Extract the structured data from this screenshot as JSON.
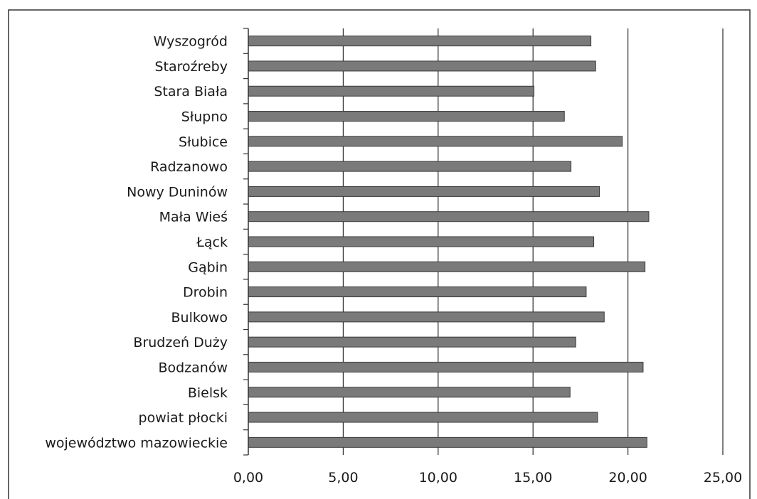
{
  "chart_data": {
    "type": "bar",
    "orientation": "horizontal",
    "categories": [
      "Wyszogród",
      "Staroźreby",
      "Stara Biała",
      "Słupno",
      "Słubice",
      "Radzanowo",
      "Nowy Duninów",
      "Mała Wieś",
      "Łąck",
      "Gąbin",
      "Drobin",
      "Bulkowo",
      "Brudzeń Duży",
      "Bodzanów",
      "Bielsk",
      "powiat płocki",
      "województwo mazowieckie"
    ],
    "values": [
      18.05,
      18.3,
      15.05,
      16.65,
      19.7,
      17.0,
      18.5,
      21.1,
      18.2,
      20.9,
      17.8,
      18.75,
      17.25,
      20.8,
      16.95,
      18.4,
      21.0
    ],
    "xlim": [
      0,
      25
    ],
    "xticks": [
      "0,00",
      "5,00",
      "10,00",
      "15,00",
      "20,00",
      "25,00"
    ],
    "title": "",
    "xlabel": "",
    "ylabel": "",
    "grid": "vertical",
    "legend": "none",
    "colors": {
      "bar": "#7a7a7a",
      "bar_edge": "#3a3a3a",
      "grid": "#2b2b2b",
      "frame": "#333333"
    }
  }
}
